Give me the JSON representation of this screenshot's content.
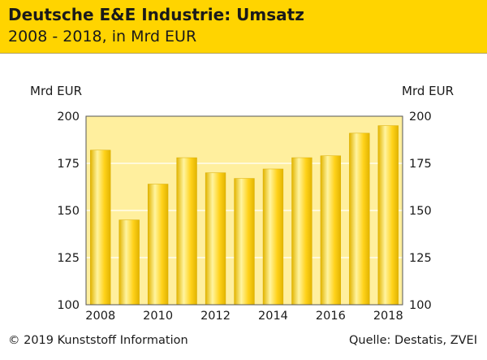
{
  "header": {
    "title": "Deutsche E&E Industrie: Umsatz",
    "subtitle": "2008 - 2018, in Mrd EUR",
    "color": "#ffd400"
  },
  "footer": {
    "copyright": "© 2019 Kunststoff Information",
    "source": "Quelle: Destatis, ZVEI"
  },
  "chart_data": {
    "type": "bar",
    "title": "Deutsche E&E Industrie: Umsatz",
    "subtitle": "2008 - 2018, in Mrd EUR",
    "ylabel_left": "Mrd EUR",
    "ylabel_right": "Mrd EUR",
    "categories": [
      "2008",
      "2009",
      "2010",
      "2011",
      "2012",
      "2013",
      "2014",
      "2015",
      "2016",
      "2017",
      "2018"
    ],
    "x_tick_labels": [
      "2008",
      "2010",
      "2012",
      "2014",
      "2016",
      "2018"
    ],
    "values": [
      182,
      145,
      164,
      178,
      170,
      167,
      172,
      178,
      179,
      191,
      195
    ],
    "ylim": [
      100,
      200
    ],
    "y_ticks": [
      100,
      125,
      150,
      175,
      200
    ],
    "grid": true,
    "bar_color": "#ffd21a",
    "bar_highlight": "#fff4a0",
    "bar_shadow": "#e2b400",
    "plot_background": "#ffef9e",
    "grid_color": "#ffffff"
  }
}
